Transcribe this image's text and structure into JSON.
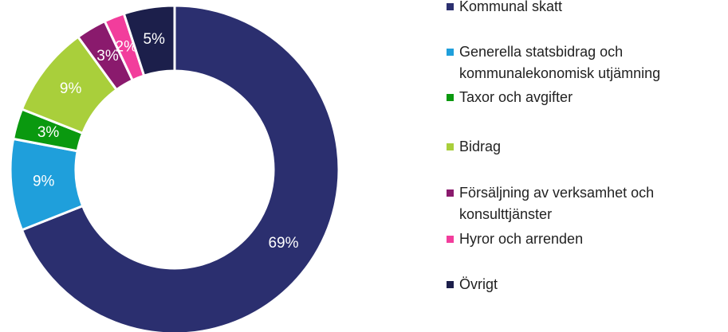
{
  "chart_data": {
    "type": "donut",
    "categories": [
      "Kommunal skatt",
      "Generella statsbidrag och\nkommunalekonomisk utjämning",
      "Taxor och avgifter",
      "Bidrag",
      "Försäljning av verksamhet och\nkonsulttjänster",
      "Hyror och arrenden",
      "Övrigt"
    ],
    "values": [
      69,
      9,
      3,
      9,
      3,
      2,
      5
    ],
    "value_labels": [
      "69%",
      "9%",
      "3%",
      "9%",
      "3%",
      "2%",
      "5%"
    ],
    "colors": [
      "#2b2f6f",
      "#1f9fdb",
      "#0a990f",
      "#a9cf3b",
      "#8a1a6d",
      "#f23d9c",
      "#1c1f4b"
    ]
  }
}
